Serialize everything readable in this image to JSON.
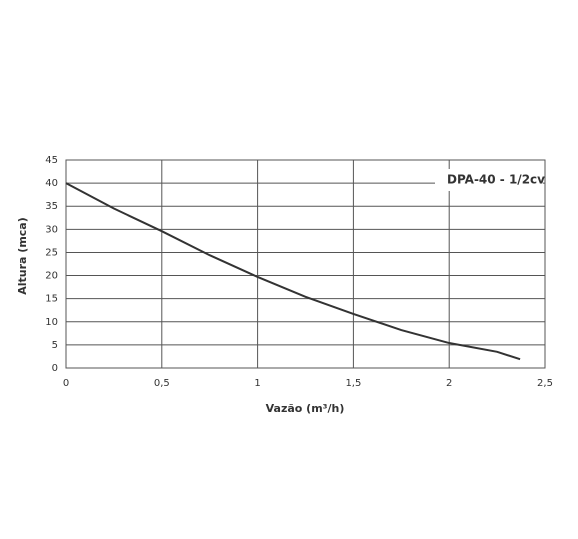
{
  "chart_data": {
    "type": "line",
    "x_label": "Vazão (m³/h)",
    "y_label": "Altura (mca)",
    "x": [
      0,
      0.25,
      0.5,
      0.75,
      1.0,
      1.25,
      1.5,
      1.75,
      2.0,
      2.25,
      2.37
    ],
    "series": [
      {
        "name": "DPA-40 - 1/2cv",
        "color": "#333333",
        "values": [
          40,
          34.5,
          29.6,
          24.4,
          19.7,
          15.4,
          11.7,
          8.2,
          5.4,
          3.5,
          1.9
        ]
      }
    ],
    "xlim": [
      0,
      2.5
    ],
    "xticks": [
      0,
      {
        "value": 0.5,
        "label": "0,5"
      },
      1,
      {
        "value": 1.5,
        "label": "1,5"
      },
      2,
      {
        "value": 2.5,
        "label": "2,5"
      }
    ],
    "ylim": [
      0,
      45
    ],
    "yticks": [
      0,
      5,
      10,
      15,
      20,
      25,
      30,
      35,
      40,
      45
    ],
    "grid": true,
    "legend": "upper right"
  }
}
